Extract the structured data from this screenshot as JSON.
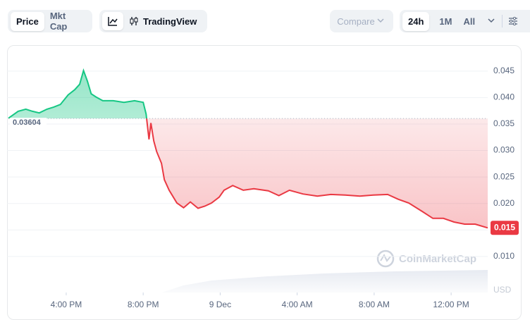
{
  "toolbar": {
    "price": "Price",
    "mkt_cap": "Mkt Cap",
    "tradingview": "TradingView",
    "compare": "Compare",
    "ranges": [
      "24h",
      "1M",
      "All"
    ]
  },
  "watermark": "CoinMarketCap",
  "chart_data": {
    "type": "line",
    "y_label": "USD",
    "up_color": "#16c784",
    "down_color": "#ea3943",
    "x": [
      13.0,
      13.5,
      13.9,
      14.25,
      14.6,
      15.0,
      15.35,
      15.7,
      16.1,
      16.45,
      16.7,
      16.9,
      17.1,
      17.3,
      17.55,
      17.9,
      18.45,
      19.0,
      19.55,
      20.0,
      20.15,
      20.3,
      20.4,
      20.55,
      20.7,
      20.95,
      21.1,
      21.35,
      21.75,
      22.1,
      22.45,
      22.85,
      23.2,
      23.55,
      23.95,
      24.2,
      24.65,
      25.2,
      25.75,
      26.5,
      27.05,
      27.6,
      28.3,
      29.05,
      29.75,
      30.5,
      31.25,
      31.95,
      32.7,
      33.25,
      33.8,
      34.5,
      35.05,
      35.6,
      36.15,
      36.7,
      37.25,
      37.9
    ],
    "values": [
      0.0361,
      0.0374,
      0.0378,
      0.0374,
      0.0371,
      0.0378,
      0.0382,
      0.0387,
      0.0405,
      0.0415,
      0.0425,
      0.0451,
      0.0431,
      0.0407,
      0.0401,
      0.0394,
      0.0394,
      0.0391,
      0.0394,
      0.0391,
      0.0369,
      0.0321,
      0.0352,
      0.0318,
      0.0298,
      0.0276,
      0.0245,
      0.0225,
      0.0201,
      0.0192,
      0.0203,
      0.0191,
      0.0195,
      0.0201,
      0.0212,
      0.0225,
      0.0234,
      0.0225,
      0.0228,
      0.0224,
      0.0215,
      0.0225,
      0.0218,
      0.0214,
      0.0217,
      0.0216,
      0.0214,
      0.0216,
      0.0217,
      0.0208,
      0.0201,
      0.0185,
      0.0172,
      0.0172,
      0.0165,
      0.0161,
      0.0161,
      0.0154
    ],
    "value_labels": [
      null,
      null,
      null,
      null,
      null,
      null,
      null,
      null,
      null,
      null,
      null,
      null,
      null,
      null,
      null,
      null,
      null,
      null,
      null,
      null,
      null,
      null,
      null,
      null,
      null,
      null,
      null,
      null,
      null,
      null,
      null,
      null,
      null,
      null,
      null,
      null,
      null,
      null,
      null,
      null,
      null,
      null,
      null,
      null,
      null,
      null,
      null,
      null,
      null,
      null,
      null,
      null,
      null,
      null,
      null,
      null,
      null,
      "0.015"
    ],
    "baseline": 0.03604,
    "xlim": [
      13,
      37.9
    ],
    "xticks": [
      {
        "value": 16,
        "label": "4:00 PM"
      },
      {
        "value": 20,
        "label": "8:00 PM"
      },
      {
        "value": 24,
        "label": "9 Dec"
      },
      {
        "value": 28,
        "label": "4:00 AM"
      },
      {
        "value": 32,
        "label": "8:00 AM"
      },
      {
        "value": 36,
        "label": "12:00 PM"
      }
    ],
    "ylim": [
      0.0032,
      0.0491
    ],
    "yticks": [
      {
        "value": 0.01,
        "label": "0.010"
      },
      0.015,
      {
        "value": 0.02,
        "label": "0.020"
      },
      0.025,
      {
        "value": 0.03,
        "label": "0.030"
      },
      0.035,
      {
        "value": 0.04,
        "label": "0.040"
      },
      0.045
    ],
    "grid": true
  }
}
